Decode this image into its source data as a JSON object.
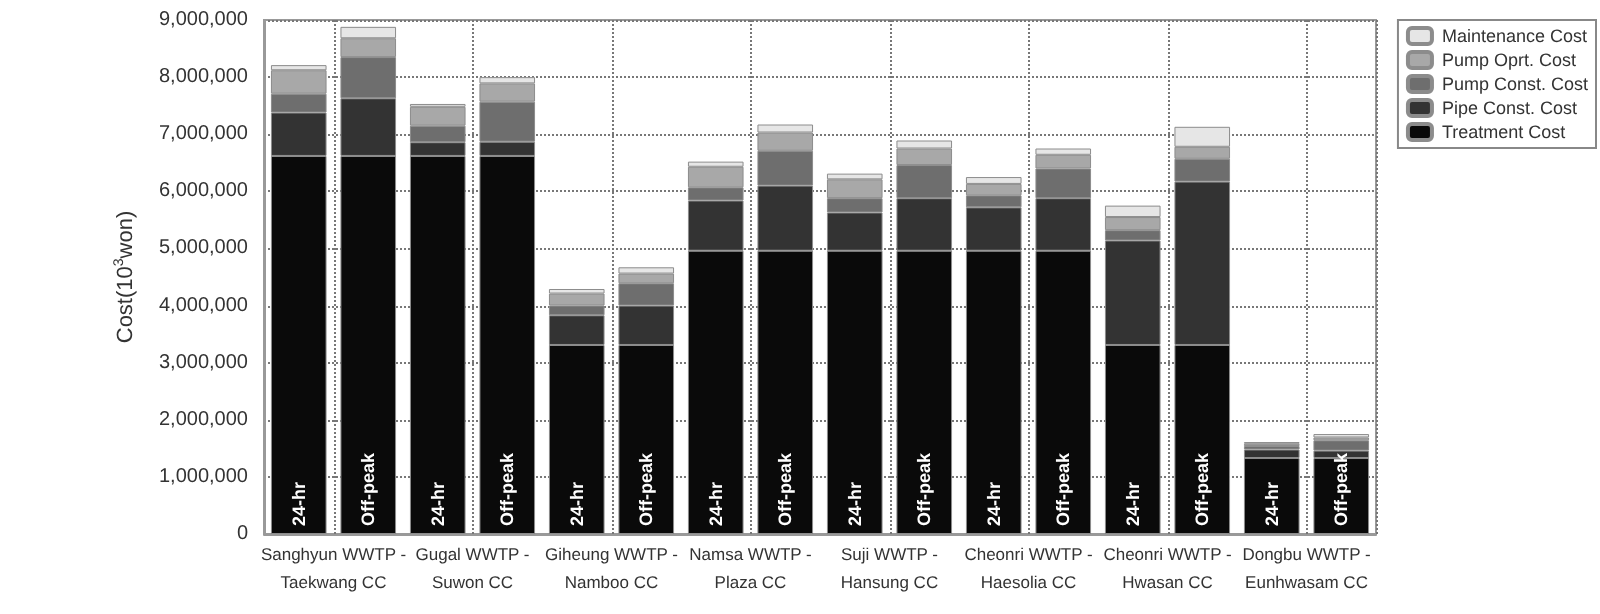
{
  "chart_data": {
    "type": "bar",
    "stacked": true,
    "ylabel": "Cost(10$^{3}$won)",
    "categories": [
      "24-hr",
      "Off-peak",
      "24-hr",
      "Off-peak",
      "24-hr",
      "Off-peak",
      "24-hr",
      "Off-peak",
      "24-hr",
      "Off-peak",
      "24-hr",
      "Off-peak",
      "24-hr",
      "Off-peak",
      "24-hr",
      "Off-peak"
    ],
    "series": [
      {
        "name": "Treatment Cost",
        "color": "#0a0a0a",
        "values": [
          6620000,
          6620000,
          6620000,
          6620000,
          3310000,
          3310000,
          4960000,
          4960000,
          4960000,
          4960000,
          4960000,
          4960000,
          3310000,
          3310000,
          1330000,
          1330000
        ]
      },
      {
        "name": "Pipe Const. Cost",
        "color": "#333333",
        "values": [
          760000,
          1010000,
          240000,
          250000,
          520000,
          690000,
          880000,
          1140000,
          670000,
          920000,
          760000,
          920000,
          1830000,
          2860000,
          150000,
          130000
        ]
      },
      {
        "name": "Pump Const. Cost",
        "color": "#6e6e6e",
        "values": [
          330000,
          720000,
          290000,
          700000,
          170000,
          390000,
          230000,
          610000,
          250000,
          580000,
          210000,
          520000,
          180000,
          400000,
          60000,
          180000
        ]
      },
      {
        "name": "Pump Oprt. Cost",
        "color": "#a8a8a8",
        "values": [
          410000,
          330000,
          330000,
          320000,
          210000,
          170000,
          360000,
          320000,
          330000,
          290000,
          200000,
          240000,
          230000,
          210000,
          40000,
          50000
        ]
      },
      {
        "name": "Maintenance Cost",
        "color": "#e6e6e6",
        "values": [
          90000,
          200000,
          50000,
          110000,
          80000,
          110000,
          90000,
          140000,
          100000,
          140000,
          120000,
          110000,
          200000,
          350000,
          30000,
          60000
        ]
      }
    ],
    "ylim": [
      0,
      9000000
    ],
    "yticks": [
      0,
      {
        "value": 1000000,
        "label": "1,000,000"
      },
      {
        "value": 2000000,
        "label": "2,000,000"
      },
      {
        "value": 3000000,
        "label": "3,000,000"
      },
      {
        "value": 4000000,
        "label": "4,000,000"
      },
      {
        "value": 5000000,
        "label": "5,000,000"
      },
      {
        "value": 6000000,
        "label": "6,000,000"
      },
      {
        "value": 7000000,
        "label": "7,000,000"
      },
      {
        "value": 8000000,
        "label": "8,000,000"
      },
      {
        "value": 9000000,
        "label": "9,000,000"
      }
    ],
    "grid": true,
    "legend": "top right",
    "annotations": [
      "Sanghyun WWTP -\nTaekwang CC",
      "Gugal WWTP -\nSuwon CC",
      "Giheung WWTP -\nNamboo CC",
      "Namsa WWTP -\nPlaza CC",
      "Suji WWTP -\nHansung CC",
      "Cheonri WWTP -\nHaesolia CC",
      "Cheonri WWTP -\nHwasan CC",
      "Dongbu WWTP -\nEunhwasam CC"
    ]
  }
}
